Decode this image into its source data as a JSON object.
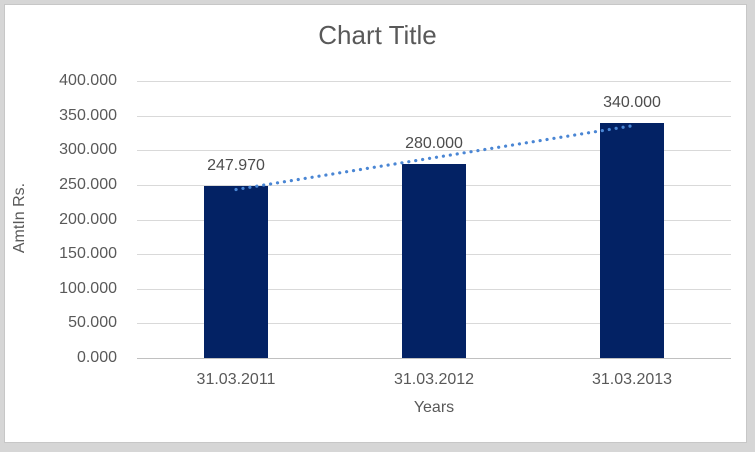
{
  "window": {
    "background": "#d6d6d6",
    "canvas_background": "#ffffff",
    "canvas_border": "#c7c7c7"
  },
  "chart_data": {
    "type": "bar",
    "title": "Chart Title",
    "xlabel": "Years",
    "ylabel": "AmtIn Rs.",
    "categories": [
      "31.03.2011",
      "31.03.2012",
      "31.03.2013"
    ],
    "values": [
      247.97,
      280.0,
      340.0
    ],
    "value_labels": [
      "247.970",
      "280.000",
      "340.000"
    ],
    "ylim": [
      0,
      400
    ],
    "y_ticks": [
      0,
      50,
      100,
      150,
      200,
      250,
      300,
      350,
      400
    ],
    "y_tick_labels": [
      "0.000",
      "50.000",
      "100.000",
      "150.000",
      "200.000",
      "250.000",
      "300.000",
      "350.000",
      "400.000"
    ],
    "grid": true,
    "legend": false,
    "bar_color": "#032264",
    "value_label_color": "#4d4d4d",
    "text_color": "#595959",
    "gridline_color": "#d9d9d9",
    "axis_line_color": "#c0c0c0",
    "trendline": {
      "type": "linear",
      "style": "dotted",
      "color": "#4a86d4",
      "start_value": 243.3,
      "end_value": 335.3
    }
  }
}
